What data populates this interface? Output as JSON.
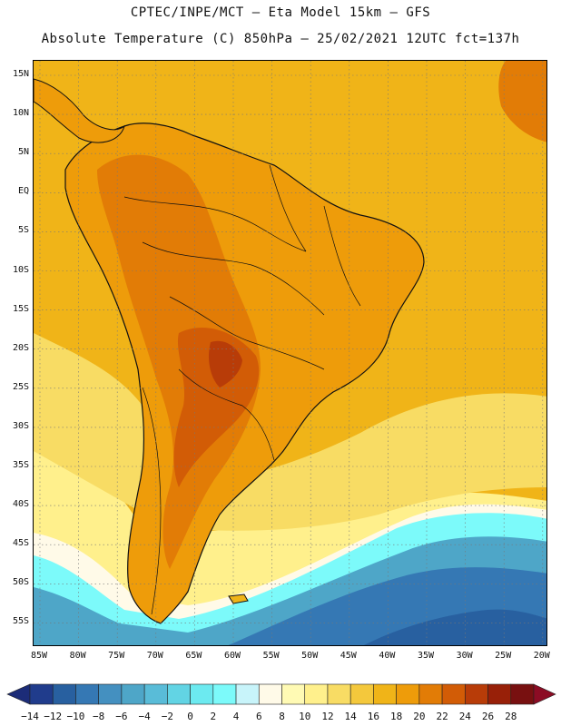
{
  "title": {
    "line1": "CPTEC/INPE/MCT –  Eta Model 15km – GFS",
    "line2": "Absolute Temperature (C) 850hPa – 25/02/2021 12UTC fct=137h"
  },
  "latitude_labels": [
    "15N",
    "10N",
    "5N",
    "EQ",
    "5S",
    "10S",
    "15S",
    "20S",
    "25S",
    "30S",
    "35S",
    "40S",
    "45S",
    "50S",
    "55S"
  ],
  "longitude_labels": [
    "85W",
    "80W",
    "75W",
    "70W",
    "65W",
    "60W",
    "55W",
    "50W",
    "45W",
    "40W",
    "35W",
    "30W",
    "25W",
    "20W"
  ],
  "colorbar": {
    "labels": [
      "-14",
      "-12",
      "-10",
      "-8",
      "-6",
      "-4",
      "-2",
      "0",
      "2",
      "4",
      "6",
      "8",
      "10",
      "12",
      "14",
      "16",
      "18",
      "20",
      "22",
      "24",
      "26",
      "28"
    ],
    "colors": [
      "#203c8c",
      "#2860a0",
      "#3578b4",
      "#4490c0",
      "#4ea6c8",
      "#59bcd8",
      "#62d4e4",
      "#6ceaf0",
      "#7cfafa",
      "#c8f4fa",
      "#fffae8",
      "#fffab4",
      "#fff08c",
      "#f8dc64",
      "#f4c83c",
      "#f0b418",
      "#ee9c0a",
      "#e27c06",
      "#d25c06",
      "#b83c08",
      "#982008",
      "#781010"
    ],
    "under_color": "#1c2c78",
    "over_color": "#8c0c24"
  },
  "colors": {
    "ocean_warm": "#f0b418",
    "land_warm": "#ee9c0a",
    "land_hot": "#e27c06",
    "land_hotter": "#d25c06",
    "land_hottest": "#b83c08",
    "coast_line": "#111111",
    "grid": "#777777"
  }
}
